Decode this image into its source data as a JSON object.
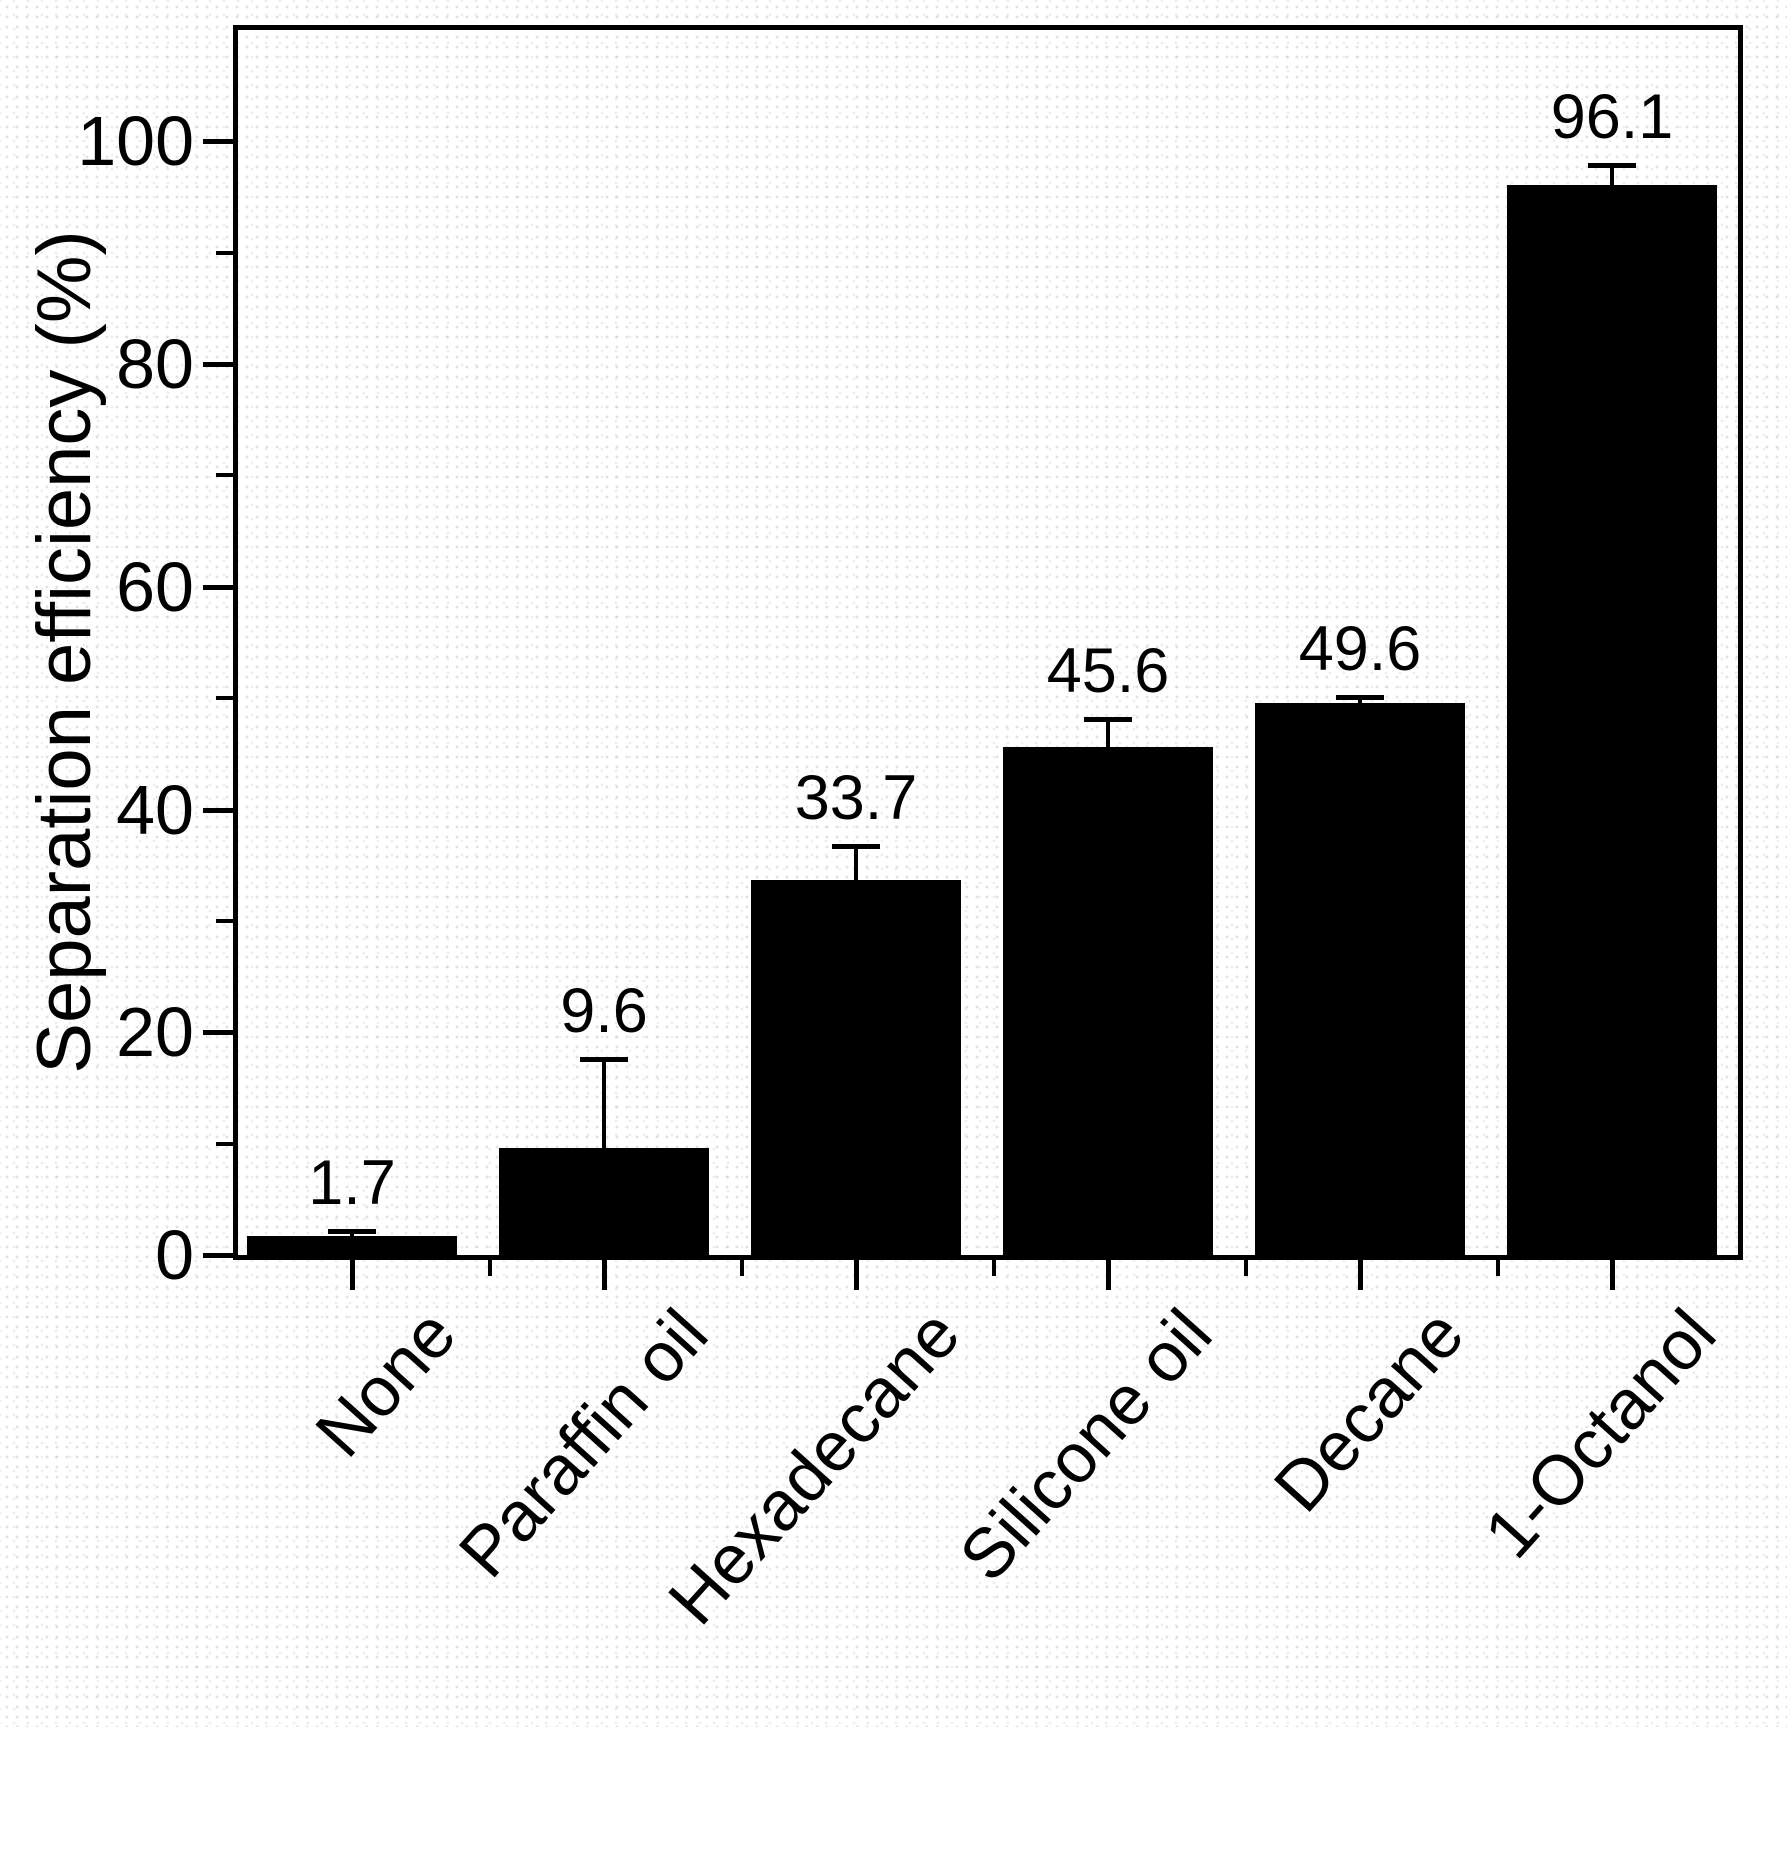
{
  "chart_data": {
    "type": "bar",
    "categories": [
      "None",
      "Paraffin oil",
      "Hexadecane",
      "Silicone oil",
      "Decane",
      "1-Octanol"
    ],
    "values": [
      1.7,
      9.6,
      33.7,
      45.6,
      49.6,
      96.1
    ],
    "data_labels": [
      "1.7",
      "9.6",
      "33.7",
      "45.6",
      "49.6",
      "96.1"
    ],
    "upper_errors": [
      0.5,
      8.0,
      3.0,
      2.5,
      0.5,
      1.8
    ],
    "title": "",
    "xlabel": "",
    "ylabel": "Separation efficiency (%)",
    "ylim": [
      0,
      110
    ],
    "yticks_major": [
      0,
      20,
      40,
      60,
      80,
      100
    ],
    "yticks_minor": [
      10,
      30,
      50,
      70,
      90
    ],
    "grid": false,
    "legend": null,
    "bar_color": "#000000",
    "axis_color": "#000000",
    "background_color": "#ffffff",
    "error_bar_style": "upper-cap"
  }
}
